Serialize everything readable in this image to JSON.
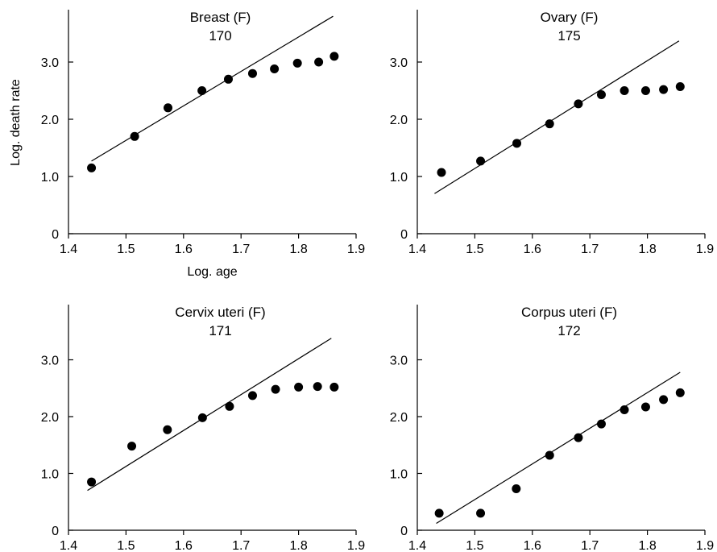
{
  "chart_data": [
    {
      "type": "scatter",
      "title": "Breast (F)",
      "subtitle": "170",
      "xlabel": "Log. age",
      "ylabel": "Log. death rate",
      "xlim": [
        1.4,
        1.9
      ],
      "ylim": [
        0,
        3.9
      ],
      "xticks": [
        "1.4",
        "1.5",
        "1.6",
        "1.7",
        "1.8",
        "1.9"
      ],
      "yticks": [
        "0",
        "1.0",
        "2.0",
        "3.0"
      ],
      "grid": false,
      "x": [
        1.44,
        1.515,
        1.573,
        1.632,
        1.678,
        1.72,
        1.758,
        1.798,
        1.835,
        1.862
      ],
      "y": [
        1.15,
        1.7,
        2.2,
        2.5,
        2.7,
        2.8,
        2.88,
        2.98,
        3.0,
        3.1
      ],
      "fit_line": {
        "x": [
          1.44,
          1.86
        ],
        "y": [
          1.27,
          3.8
        ]
      }
    },
    {
      "type": "scatter",
      "title": "Ovary (F)",
      "subtitle": "175",
      "xlabel": "",
      "ylabel": "",
      "xlim": [
        1.4,
        1.9
      ],
      "ylim": [
        0,
        3.9
      ],
      "xticks": [
        "1.4",
        "1.5",
        "1.6",
        "1.7",
        "1.8",
        "1.9"
      ],
      "yticks": [
        "0",
        "1.0",
        "2.0",
        "3.0"
      ],
      "grid": false,
      "x": [
        1.442,
        1.51,
        1.573,
        1.63,
        1.68,
        1.72,
        1.76,
        1.797,
        1.828,
        1.857
      ],
      "y": [
        1.07,
        1.27,
        1.58,
        1.92,
        2.27,
        2.43,
        2.5,
        2.5,
        2.52,
        2.57
      ],
      "fit_line": {
        "x": [
          1.43,
          1.855
        ],
        "y": [
          0.7,
          3.37
        ]
      }
    },
    {
      "type": "scatter",
      "title": "Cervix uteri (F)",
      "subtitle": "171",
      "xlabel": "",
      "ylabel": "",
      "xlim": [
        1.4,
        1.9
      ],
      "ylim": [
        0,
        3.9
      ],
      "xticks": [
        "1.4",
        "1.5",
        "1.6",
        "1.7",
        "1.8",
        "1.9"
      ],
      "yticks": [
        "0",
        "1.0",
        "2.0",
        "3.0"
      ],
      "grid": false,
      "x": [
        1.44,
        1.51,
        1.572,
        1.633,
        1.68,
        1.72,
        1.76,
        1.8,
        1.833,
        1.862
      ],
      "y": [
        0.85,
        1.48,
        1.77,
        1.98,
        2.18,
        2.37,
        2.48,
        2.52,
        2.53,
        2.52
      ],
      "fit_line": {
        "x": [
          1.433,
          1.857
        ],
        "y": [
          0.7,
          3.38
        ]
      }
    },
    {
      "type": "scatter",
      "title": "Corpus uteri (F)",
      "subtitle": "172",
      "xlabel": "",
      "ylabel": "",
      "xlim": [
        1.4,
        1.9
      ],
      "ylim": [
        0,
        3.9
      ],
      "xticks": [
        "1.4",
        "1.5",
        "1.6",
        "1.7",
        "1.8",
        "1.9"
      ],
      "yticks": [
        "0",
        "1.0",
        "2.0",
        "3.0"
      ],
      "grid": false,
      "x": [
        1.438,
        1.51,
        1.572,
        1.63,
        1.68,
        1.72,
        1.76,
        1.797,
        1.828,
        1.857
      ],
      "y": [
        0.3,
        0.3,
        0.73,
        1.32,
        1.63,
        1.87,
        2.12,
        2.17,
        2.3,
        2.42
      ],
      "fit_line": {
        "x": [
          1.433,
          1.857
        ],
        "y": [
          0.12,
          2.78
        ]
      }
    }
  ]
}
